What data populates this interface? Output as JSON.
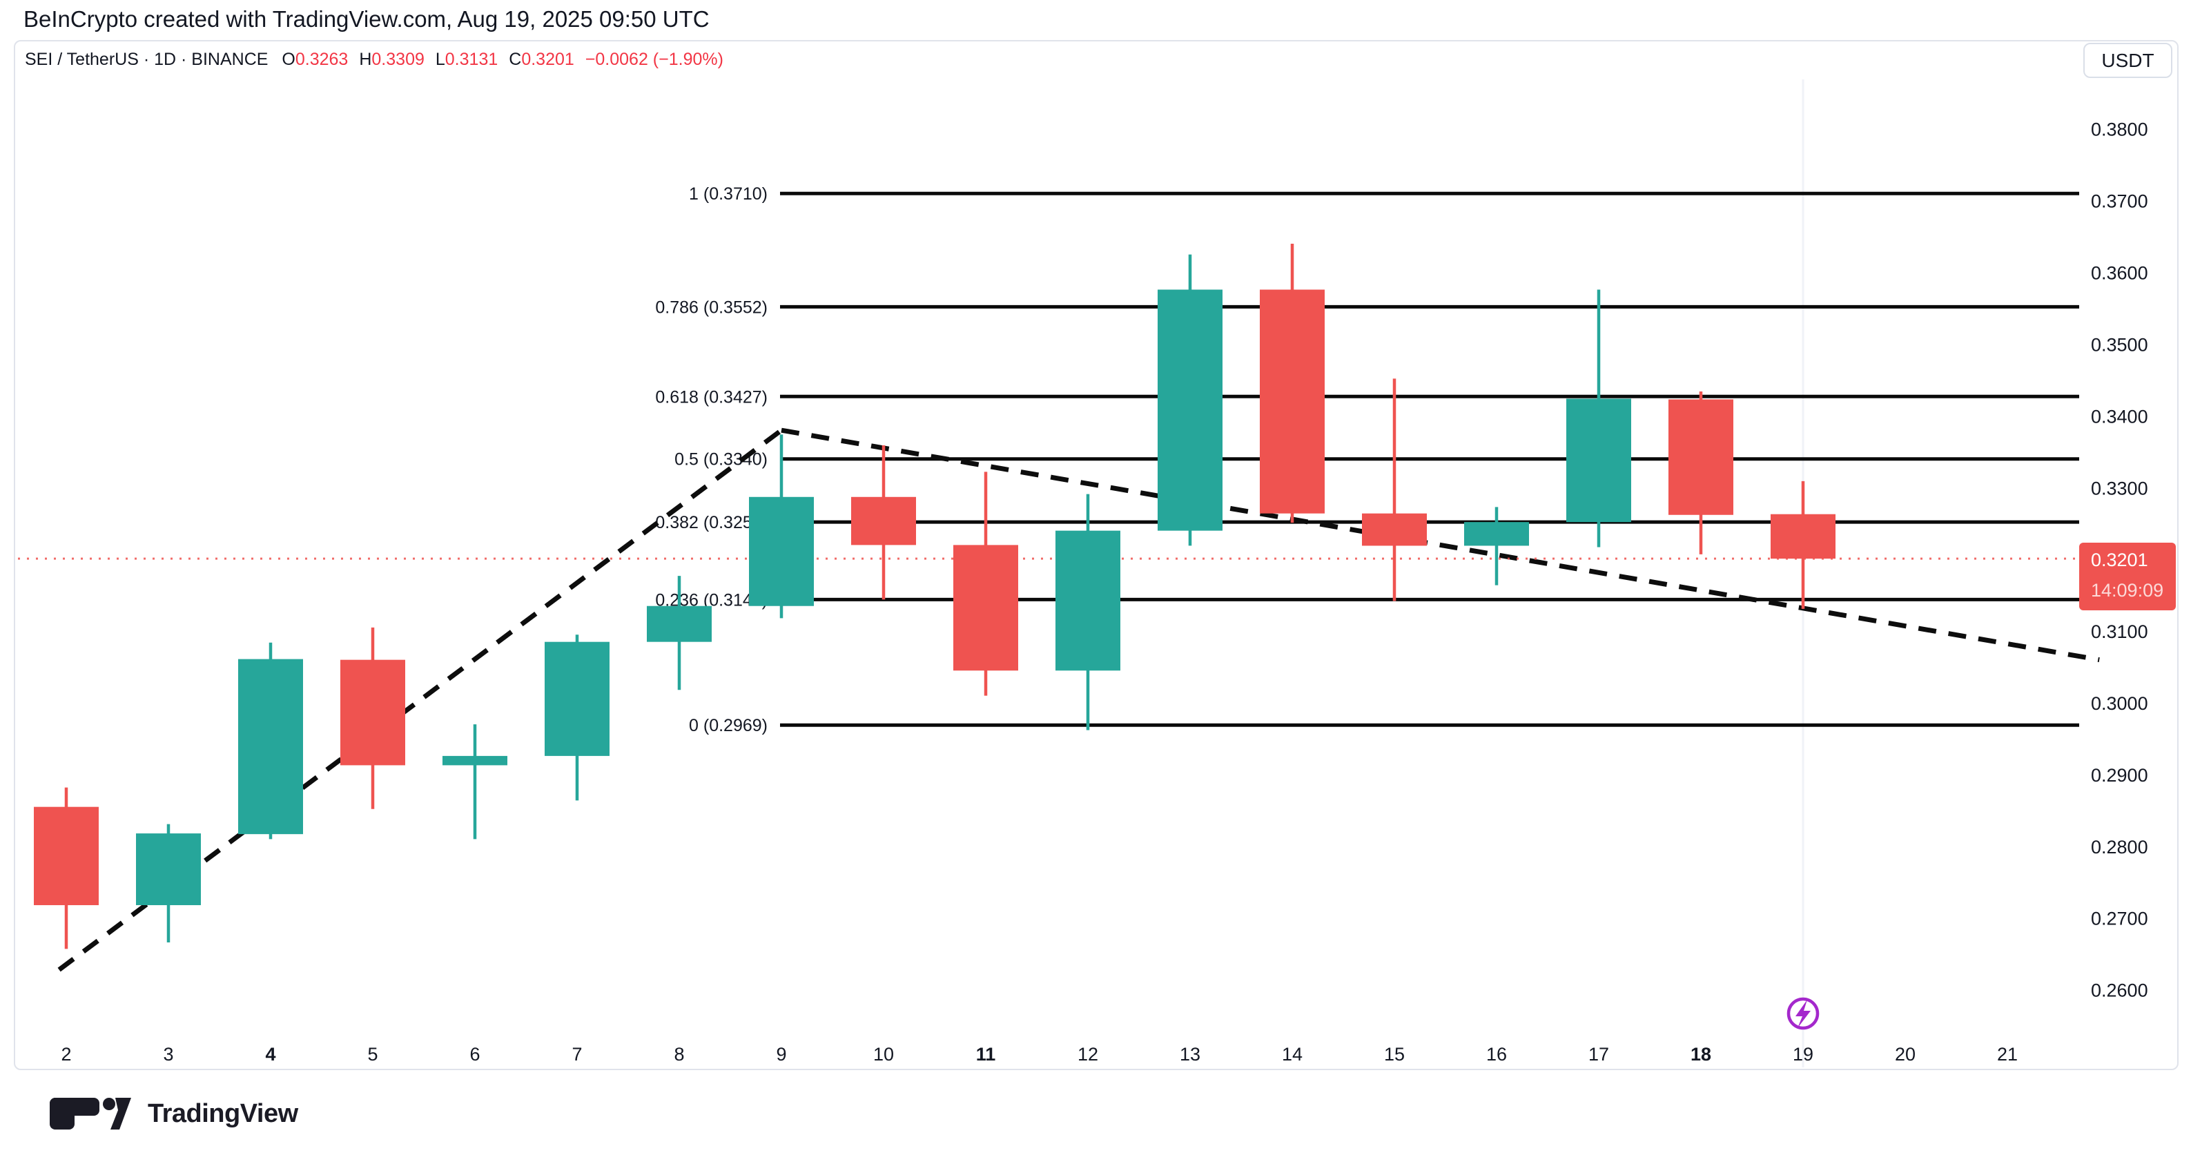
{
  "header": {
    "title": "BeInCrypto created with TradingView.com, Aug 19, 2025 09:50 UTC"
  },
  "symbol_row": {
    "title": "SEI / TetherUS · 1D · BINANCE",
    "ohlc": [
      {
        "label": "O",
        "value": "0.3263"
      },
      {
        "label": "H",
        "value": "0.3309"
      },
      {
        "label": "L",
        "value": "0.3131"
      },
      {
        "label": "C",
        "value": "0.3201"
      }
    ],
    "change": "−0.0062 (−1.90%)",
    "value_color": "#f23645"
  },
  "price_axis": {
    "currency": "USDT",
    "ticks": [
      0.38,
      0.37,
      0.36,
      0.35,
      0.34,
      0.33,
      0.31,
      0.3,
      0.29,
      0.28,
      0.27,
      0.26
    ],
    "last_price": "0.3201",
    "last_time": "14:09:09",
    "tag_color": "#ef5350"
  },
  "time_axis": {
    "labels": [
      2,
      3,
      4,
      5,
      6,
      7,
      8,
      9,
      10,
      11,
      12,
      13,
      14,
      15,
      16,
      17,
      18,
      19,
      20,
      21
    ],
    "bold": [
      4,
      11,
      18
    ]
  },
  "chart_data": {
    "type": "candlestick",
    "title": "SEI / TetherUS 1D BINANCE",
    "ylabel": "Price (USDT)",
    "ylim": [
      0.252,
      0.386
    ],
    "x_days": [
      2,
      3,
      4,
      5,
      6,
      7,
      8,
      9,
      10,
      11,
      12,
      13,
      14,
      15,
      16,
      17,
      18,
      19
    ],
    "candles": [
      {
        "day": 2,
        "o": 0.2855,
        "h": 0.2882,
        "l": 0.2657,
        "c": 0.2718
      },
      {
        "day": 3,
        "o": 0.2718,
        "h": 0.2831,
        "l": 0.2666,
        "c": 0.2818
      },
      {
        "day": 4,
        "o": 0.2817,
        "h": 0.3084,
        "l": 0.281,
        "c": 0.3061
      },
      {
        "day": 5,
        "o": 0.306,
        "h": 0.3105,
        "l": 0.2852,
        "c": 0.2913
      },
      {
        "day": 6,
        "o": 0.2913,
        "h": 0.297,
        "l": 0.281,
        "c": 0.2926
      },
      {
        "day": 7,
        "o": 0.2926,
        "h": 0.3095,
        "l": 0.2864,
        "c": 0.3085
      },
      {
        "day": 8,
        "o": 0.3085,
        "h": 0.3177,
        "l": 0.3018,
        "c": 0.3135
      },
      {
        "day": 9,
        "o": 0.3135,
        "h": 0.3374,
        "l": 0.3118,
        "c": 0.3287
      },
      {
        "day": 10,
        "o": 0.3287,
        "h": 0.3359,
        "l": 0.3144,
        "c": 0.322
      },
      {
        "day": 11,
        "o": 0.322,
        "h": 0.3322,
        "l": 0.301,
        "c": 0.3045
      },
      {
        "day": 12,
        "o": 0.3045,
        "h": 0.3291,
        "l": 0.2962,
        "c": 0.324
      },
      {
        "day": 13,
        "o": 0.324,
        "h": 0.3625,
        "l": 0.3219,
        "c": 0.3576
      },
      {
        "day": 14,
        "o": 0.3576,
        "h": 0.364,
        "l": 0.3251,
        "c": 0.3264
      },
      {
        "day": 15,
        "o": 0.3264,
        "h": 0.3452,
        "l": 0.3142,
        "c": 0.3219
      },
      {
        "day": 16,
        "o": 0.3219,
        "h": 0.3273,
        "l": 0.3164,
        "c": 0.3252
      },
      {
        "day": 17,
        "o": 0.3252,
        "h": 0.3576,
        "l": 0.3217,
        "c": 0.3424
      },
      {
        "day": 18,
        "o": 0.3423,
        "h": 0.3434,
        "l": 0.3207,
        "c": 0.3262
      },
      {
        "day": 19,
        "o": 0.3263,
        "h": 0.3309,
        "l": 0.3131,
        "c": 0.3201
      }
    ],
    "fib_levels": [
      {
        "label": "1 (0.3710)",
        "price": 0.371
      },
      {
        "label": "0.786 (0.3552)",
        "price": 0.3552
      },
      {
        "label": "0.618 (0.3427)",
        "price": 0.3427
      },
      {
        "label": "0.5 (0.3340)",
        "price": 0.334
      },
      {
        "label": "0.382 (0.3252)",
        "price": 0.3252
      },
      {
        "label": "0.236 (0.3144)",
        "price": 0.3144
      },
      {
        "label": "0 (0.2969)",
        "price": 0.2969
      }
    ],
    "trendlines": [
      {
        "from": {
          "day": 1.93,
          "price": 0.2628
        },
        "to": {
          "day": 9.0,
          "price": 0.338
        }
      },
      {
        "from": {
          "day": 9.0,
          "price": 0.338
        },
        "to": {
          "day": 21.9,
          "price": 0.306
        }
      }
    ],
    "current_price": 0.3201,
    "marker": {
      "day": 19,
      "icon": "lightning",
      "color": "#a428cc"
    },
    "colors": {
      "up": "#26a69a",
      "down": "#ef5350",
      "fib_line": "#0a0a0a",
      "trend_line": "#0d0d0d",
      "dotted_price_line": "#ef5350",
      "text": "#131722"
    },
    "legend_position": "none",
    "grid": "off"
  },
  "logo": {
    "text": "TradingView"
  }
}
